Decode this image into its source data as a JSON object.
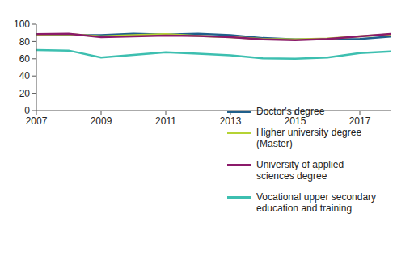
{
  "chart_data": {
    "type": "line",
    "x": [
      2007,
      2008,
      2009,
      2010,
      2011,
      2012,
      2013,
      2014,
      2015,
      2016,
      2017,
      2018
    ],
    "xlim": [
      2007,
      2018
    ],
    "xticks": [
      2007,
      2009,
      2011,
      2013,
      2015,
      2017
    ],
    "ylim": [
      0,
      100
    ],
    "yticks": [
      0,
      20,
      40,
      60,
      80,
      100
    ],
    "grid": false,
    "legend": "lower right",
    "series": [
      {
        "name": "Doctor's degree",
        "color": "#1f5f8b",
        "values": [
          87.5,
          87.5,
          87.5,
          89,
          88,
          89,
          87.5,
          84,
          82.5,
          82.5,
          83,
          86
        ]
      },
      {
        "name": "Higher university degree (Master)",
        "color": "#b5d334",
        "values": [
          88,
          88.5,
          86,
          87.5,
          88.5,
          86.5,
          85,
          83,
          82.5,
          83.5,
          86,
          88.5
        ]
      },
      {
        "name": "University of applied sciences degree",
        "color": "#8b1a6a",
        "values": [
          88.5,
          89,
          85,
          86,
          87,
          86.5,
          85,
          82.5,
          81.5,
          83,
          86,
          89
        ]
      },
      {
        "name": "Vocational upper secondary education and training",
        "color": "#3dbfb0",
        "values": [
          70,
          69.5,
          61.5,
          64.5,
          67.5,
          66,
          64,
          60.5,
          60,
          61.5,
          66.5,
          68.5
        ]
      }
    ]
  }
}
